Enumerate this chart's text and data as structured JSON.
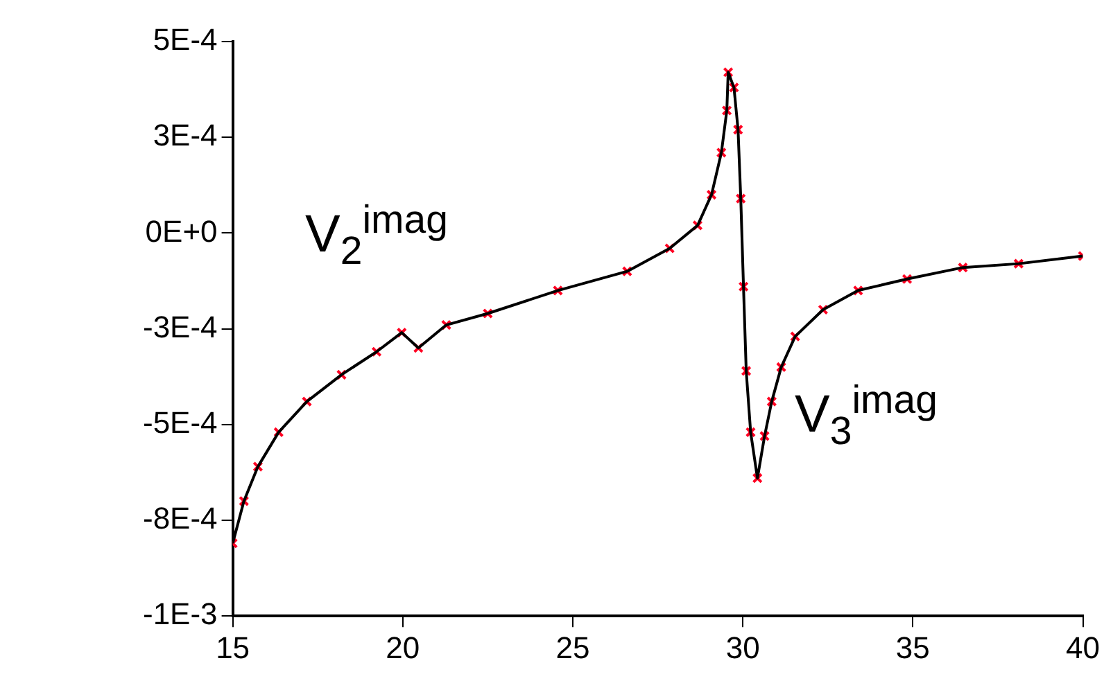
{
  "chart_data": {
    "type": "scatter",
    "x": [
      15,
      15.33,
      15.74,
      16.35,
      17.18,
      18.2,
      19.23,
      19.97,
      20.46,
      21.28,
      22.5,
      24.56,
      26.6,
      27.85,
      28.67,
      29.08,
      29.37,
      29.53,
      29.57,
      29.74,
      29.86,
      29.94,
      30.02,
      30.1,
      30.23,
      30.43,
      30.64,
      30.85,
      31.13,
      31.54,
      32.36,
      33.39,
      34.83,
      36.47,
      38.11,
      40
    ],
    "series": [
      {
        "type": "scatter",
        "color": "#ff0022",
        "marker": "cross",
        "values": [
          -0.00081,
          -0.0007,
          -0.00061,
          -0.00052,
          -0.00044,
          -0.00037,
          -0.00031,
          -0.00026,
          -0.0003,
          -0.00024,
          -0.00021,
          -0.00015,
          -0.0001,
          -4e-05,
          2e-05,
          0.0001,
          0.00021,
          0.00032,
          0.00042,
          0.00038,
          0.00027,
          9e-05,
          -0.00014,
          -0.00036,
          -0.00052,
          -0.00064,
          -0.00053,
          -0.00044,
          -0.00035,
          -0.00027,
          -0.0002,
          -0.00015,
          -0.00012,
          -9e-05,
          -8e-05,
          -6e-05
        ]
      },
      {
        "type": "line",
        "color": "#000000",
        "marker": "none",
        "values": [
          -0.00081,
          -0.0007,
          -0.00061,
          -0.00052,
          -0.00044,
          -0.00037,
          -0.00031,
          -0.00026,
          -0.0003,
          -0.00024,
          -0.00021,
          -0.00015,
          -0.0001,
          -4e-05,
          2e-05,
          0.0001,
          0.00021,
          0.00032,
          0.00042,
          0.00038,
          0.00027,
          9e-05,
          -0.00014,
          -0.00036,
          -0.00052,
          -0.00064,
          -0.00053,
          -0.00044,
          -0.00035,
          -0.00027,
          -0.0002,
          -0.00015,
          -0.00012,
          -9e-05,
          -8e-05,
          -6e-05
        ]
      }
    ],
    "xlim": [
      15,
      40
    ],
    "xticks": [
      15,
      20,
      25,
      30,
      35,
      40
    ],
    "ylim": [
      -0.001,
      0.0005
    ],
    "yticks": [
      {
        "value": 0.0005,
        "label": "5E-4"
      },
      {
        "value": 0.00025,
        "label": "3E-4"
      },
      {
        "value": 0,
        "label": "0E+0"
      },
      {
        "value": -0.00025,
        "label": "-3E-4"
      },
      {
        "value": -0.0005,
        "label": "-5E-4"
      },
      {
        "value": -0.00075,
        "label": "-8E-4"
      },
      {
        "value": -0.001,
        "label": "-1E-3"
      }
    ],
    "annotations": [
      "V$_{2}$$^{imag}$",
      "V$_{3}$$^{imag}$"
    ],
    "grid": false,
    "legend": false
  }
}
